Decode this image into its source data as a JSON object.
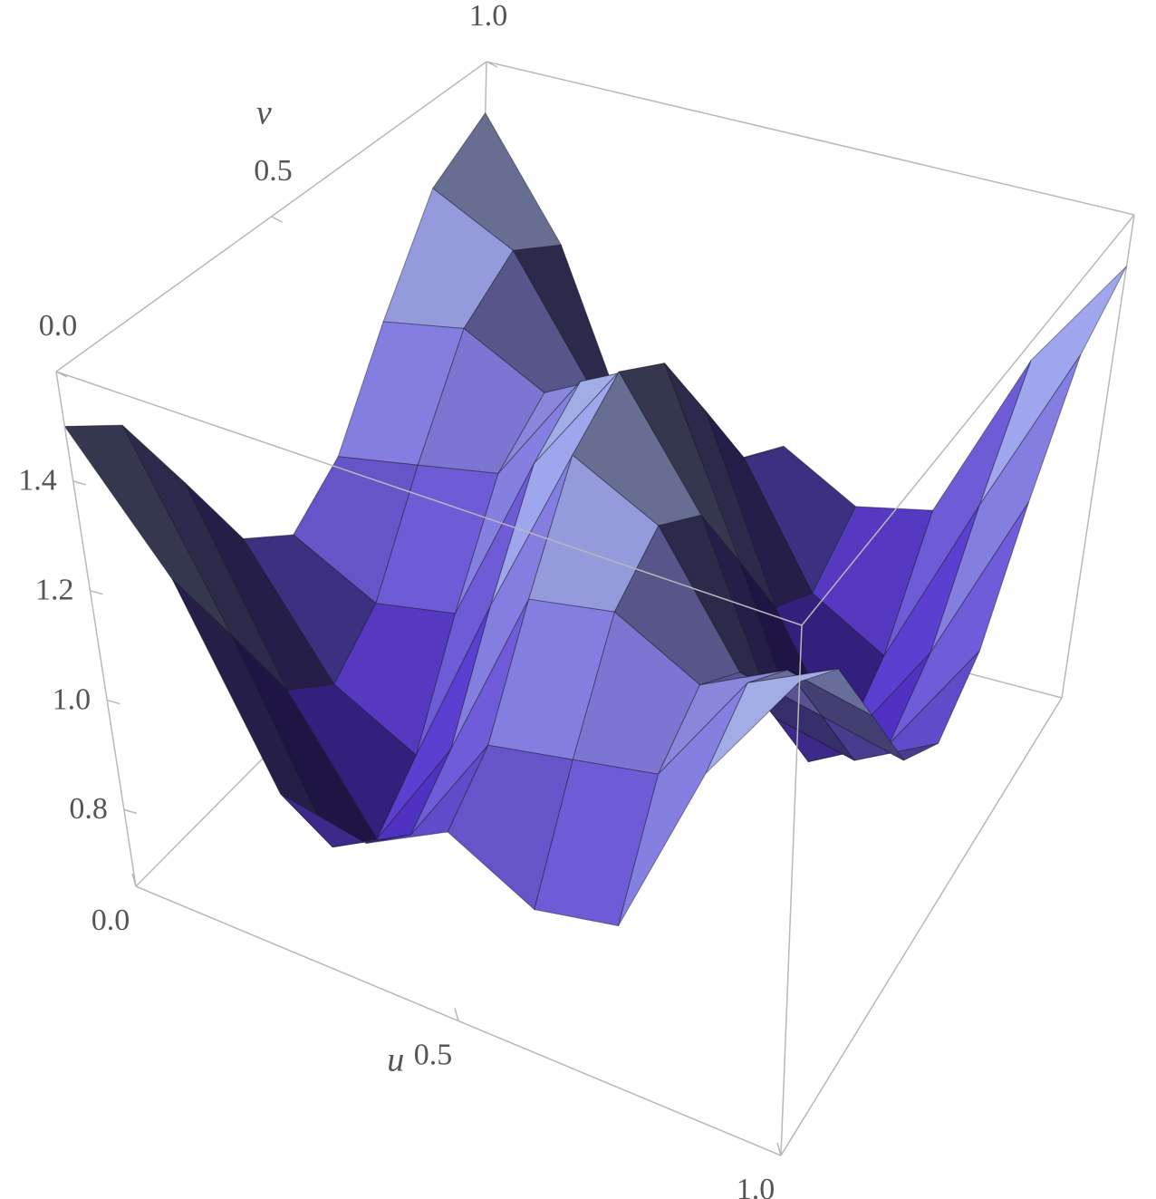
{
  "chart_data": {
    "type": "surface",
    "x_label": "u",
    "y_label": "v",
    "x": [
      0,
      0.125,
      0.25,
      0.375,
      0.5,
      0.625,
      0.75,
      0.875,
      1
    ],
    "y": [
      0,
      0.125,
      0.25,
      0.375,
      0.5,
      0.625,
      0.75,
      0.875,
      1
    ],
    "z": [
      [
        1.5,
        1.43,
        1.25,
        1.07,
        1.0,
        1.07,
        1.25,
        1.43,
        1.5
      ],
      [
        1.28,
        1.1,
        0.92,
        0.85,
        0.92,
        1.1,
        1.28,
        1.35,
        1.28
      ],
      [
        0.95,
        0.77,
        0.7,
        0.77,
        0.95,
        1.13,
        1.2,
        1.13,
        0.95
      ],
      [
        0.92,
        0.85,
        0.92,
        1.1,
        1.28,
        1.35,
        1.28,
        1.1,
        0.92
      ],
      [
        1.0,
        1.07,
        1.25,
        1.43,
        1.5,
        1.43,
        1.25,
        1.07,
        1.0
      ],
      [
        0.92,
        1.1,
        1.28,
        1.35,
        1.28,
        1.1,
        0.92,
        0.85,
        0.92
      ],
      [
        0.95,
        1.13,
        1.2,
        1.13,
        0.95,
        0.77,
        0.7,
        0.77,
        0.95
      ],
      [
        1.28,
        1.35,
        1.28,
        1.1,
        0.92,
        0.85,
        0.92,
        1.1,
        1.28
      ],
      [
        1.5,
        1.43,
        1.25,
        1.07,
        1.0,
        1.07,
        1.25,
        1.43,
        1.5
      ]
    ],
    "xlim": [
      0,
      1
    ],
    "ylim": [
      0,
      1
    ],
    "zlim": [
      0.66,
      1.6
    ],
    "xticks": [
      {
        "value": 0,
        "label": "0.0"
      },
      0.5,
      {
        "value": 1,
        "label": "1.0"
      }
    ],
    "yticks": [
      {
        "value": 0,
        "label": "0.0"
      },
      0.5,
      {
        "value": 1,
        "label": "1.0"
      }
    ],
    "zticks": [
      0.8,
      {
        "value": 1,
        "label": "1.0"
      },
      1.2,
      1.4
    ],
    "mesh": true
  }
}
